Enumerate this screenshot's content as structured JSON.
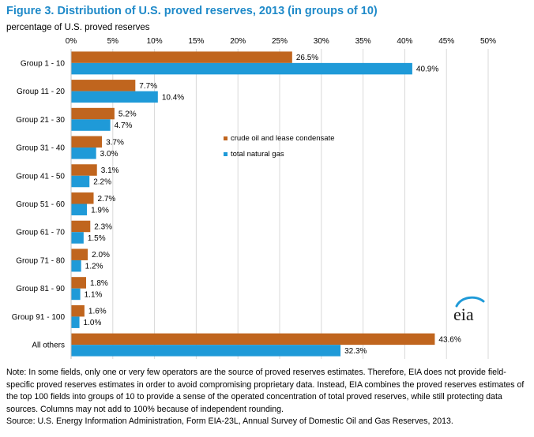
{
  "title": "Figure 3. Distribution of U.S. proved reserves, 2013 (in groups of 10)",
  "subtitle": "percentage of U.S. proved reserves",
  "colors": {
    "oil": "#c0651e",
    "gas": "#1f9ad8",
    "title": "#1f8ac9",
    "grid": "#d9d9d9"
  },
  "legend": {
    "oil": "crude oil and lease condensate",
    "gas": "total natural gas"
  },
  "logo": {
    "text": "eia",
    "icon": "eia-logo"
  },
  "note": "Note: In some fields, only one or very few operators are the source of proved reserves estimates. Therefore, EIA does not provide field-specific proved reserves estimates in order to avoid compromising proprietary data. Instead, EIA combines the proved reserves estimates of the top 100 fields into groups of 10 to provide a sense of the operated concentration of total proved reserves, while still protecting data sources. Columns may not add to 100% because of independent rounding.",
  "source": "Source: U.S. Energy Information Administration, Form EIA-23L, Annual Survey of Domestic Oil and Gas Reserves, 2013.",
  "chart_data": {
    "type": "bar",
    "orientation": "horizontal",
    "categories": [
      "Group 1 - 10",
      "Group 11 - 20",
      "Group 21 - 30",
      "Group 31 - 40",
      "Group 41 - 50",
      "Group 51 - 60",
      "Group 61 - 70",
      "Group 71 - 80",
      "Group 81 - 90",
      "Group 91 - 100",
      "All others"
    ],
    "series": [
      {
        "name": "crude oil and lease condensate",
        "values": [
          26.5,
          7.7,
          5.2,
          3.7,
          3.1,
          2.7,
          2.3,
          2.0,
          1.8,
          1.6,
          43.6
        ],
        "labels": [
          "26.5%",
          "7.7%",
          "5.2%",
          "3.7%",
          "3.1%",
          "2.7%",
          "2.3%",
          "2.0%",
          "1.8%",
          "1.6%",
          "43.6%"
        ]
      },
      {
        "name": "total natural gas",
        "values": [
          40.9,
          10.4,
          4.7,
          3.0,
          2.2,
          1.9,
          1.5,
          1.2,
          1.1,
          1.0,
          32.3
        ],
        "labels": [
          "40.9%",
          "10.4%",
          "4.7%",
          "3.0%",
          "2.2%",
          "1.9%",
          "1.5%",
          "1.2%",
          "1.1%",
          "1.0%",
          "32.3%"
        ]
      }
    ],
    "xlim": [
      0,
      50
    ],
    "xticks": [
      0,
      5,
      10,
      15,
      20,
      25,
      30,
      35,
      40,
      45,
      50
    ],
    "xtick_labels": [
      "0%",
      "5%",
      "10%",
      "15%",
      "20%",
      "25%",
      "30%",
      "35%",
      "40%",
      "45%",
      "50%"
    ],
    "axis_position": "top",
    "grid": true,
    "legend_position": "center"
  }
}
